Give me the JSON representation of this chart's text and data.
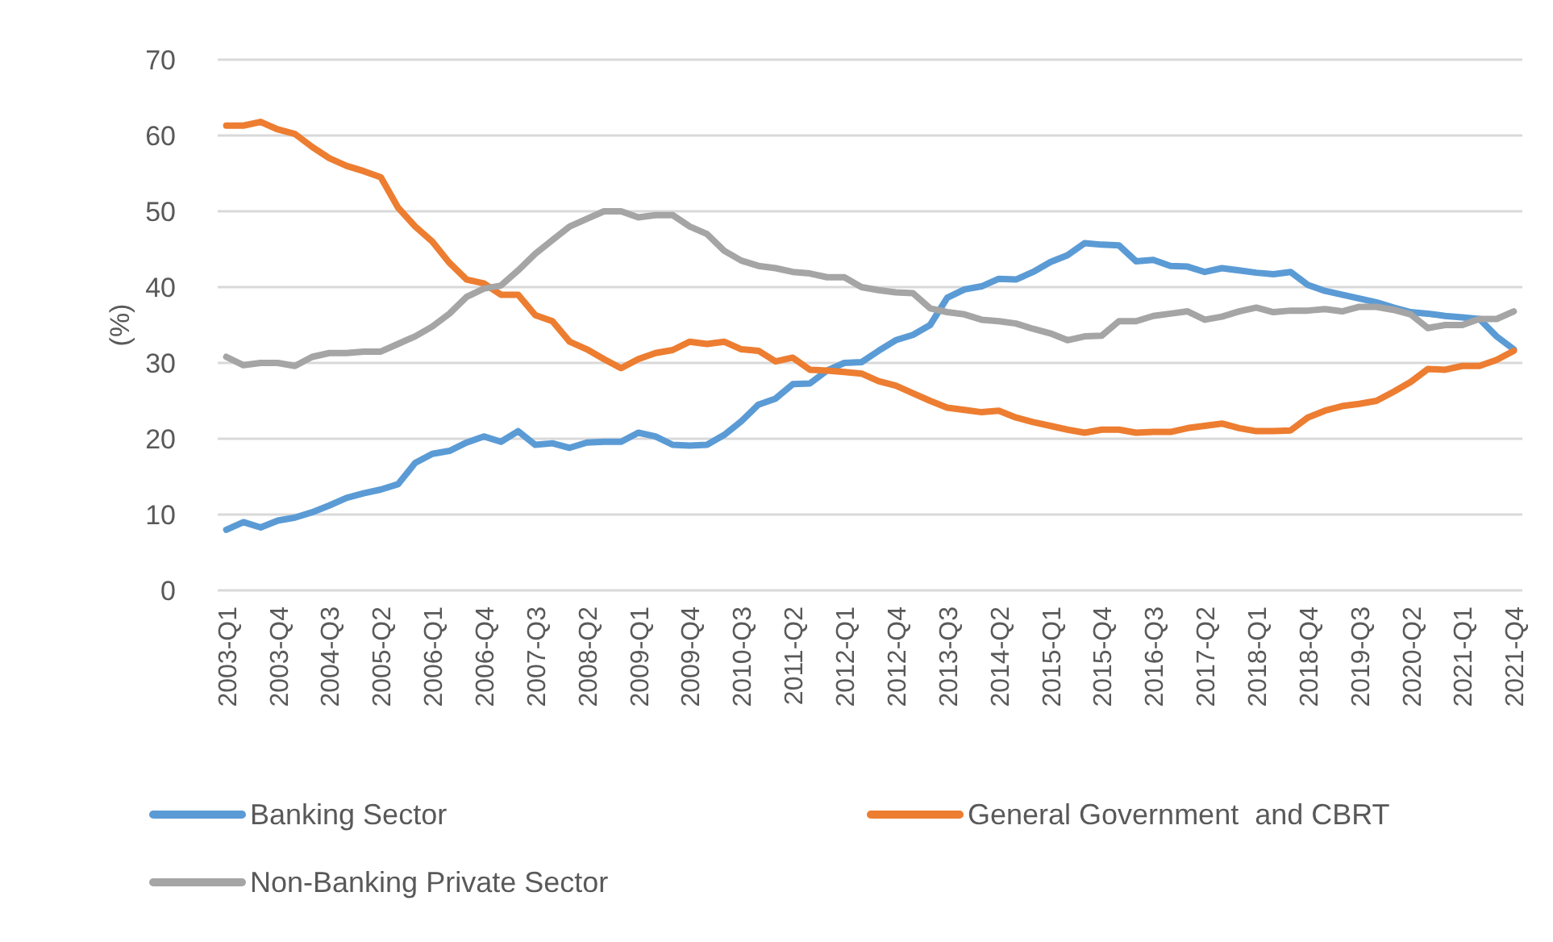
{
  "chart_data": {
    "type": "line",
    "ylabel": "(%)",
    "categories": [
      "2003-Q1",
      null,
      null,
      "2003-Q4",
      null,
      null,
      "2004-Q3",
      null,
      null,
      "2005-Q2",
      null,
      null,
      "2006-Q1",
      null,
      null,
      "2006-Q4",
      null,
      null,
      "2007-Q3",
      null,
      null,
      "2008-Q2",
      null,
      null,
      "2009-Q1",
      null,
      null,
      "2009-Q4",
      null,
      null,
      "2010-Q3",
      null,
      null,
      "2011-Q2",
      null,
      null,
      "2012-Q1",
      null,
      null,
      "2012-Q4",
      null,
      null,
      "2013-Q3",
      null,
      null,
      "2014-Q2",
      null,
      null,
      "2015-Q1",
      null,
      null,
      "2015-Q4",
      null,
      null,
      "2016-Q3",
      null,
      null,
      "2017-Q2",
      null,
      null,
      "2018-Q1",
      null,
      null,
      "2018-Q4",
      null,
      null,
      "2019-Q3",
      null,
      null,
      "2020-Q2",
      null,
      null,
      "2021-Q1",
      null,
      null,
      "2021-Q4"
    ],
    "series": [
      {
        "name": "Banking Sector",
        "color": "#5b9bd5",
        "values": [
          8,
          9,
          8.3,
          9.2,
          9.6,
          10.3,
          11.2,
          12.2,
          12.8,
          13.3,
          14,
          16.8,
          18,
          18.4,
          19.5,
          20.3,
          19.6,
          21,
          19.2,
          19.4,
          18.8,
          19.5,
          19.6,
          19.6,
          20.8,
          20.3,
          19.2,
          19.1,
          19.2,
          20.5,
          22.3,
          24.5,
          25.3,
          27.2,
          27.3,
          29,
          30,
          30.1,
          31.6,
          33,
          33.7,
          35,
          38.6,
          39.7,
          40.1,
          41.1,
          41,
          42,
          43.3,
          44.2,
          45.8,
          45.6,
          45.5,
          43.4,
          43.6,
          42.8,
          42.7,
          42,
          42.5,
          42.2,
          41.9,
          41.7,
          42,
          40.3,
          39.5,
          39,
          38.5,
          38,
          37.3,
          36.7,
          36.5,
          36.2,
          36,
          35.8,
          33.5,
          31.8
        ]
      },
      {
        "name": "General Government  and CBRT",
        "color": "#ed7d31",
        "values": [
          61.3,
          61.3,
          61.8,
          60.8,
          60.2,
          58.5,
          57,
          56,
          55.3,
          54.5,
          50.5,
          48,
          46,
          43.2,
          41,
          40.5,
          39,
          39,
          36.3,
          35.5,
          32.8,
          31.8,
          30.5,
          29.3,
          30.5,
          31.3,
          31.7,
          32.8,
          32.5,
          32.8,
          31.8,
          31.6,
          30.2,
          30.7,
          29.1,
          29,
          28.8,
          28.6,
          27.6,
          27,
          26,
          25,
          24.1,
          23.8,
          23.5,
          23.7,
          22.8,
          22.2,
          21.7,
          21.2,
          20.8,
          21.2,
          21.2,
          20.8,
          20.9,
          20.9,
          21.4,
          21.7,
          22,
          21.4,
          21,
          21,
          21.1,
          22.8,
          23.7,
          24.3,
          24.6,
          25,
          26.2,
          27.5,
          29.2,
          29.1,
          29.6,
          29.6,
          30.4,
          31.6
        ]
      },
      {
        "name": "Non-Banking Private Sector",
        "color": "#a5a5a5",
        "values": [
          30.8,
          29.7,
          30,
          30,
          29.6,
          30.8,
          31.3,
          31.3,
          31.5,
          31.5,
          32.5,
          33.5,
          34.8,
          36.5,
          38.7,
          39.8,
          40.2,
          42.2,
          44.4,
          46.2,
          48,
          49,
          50,
          50,
          49.2,
          49.5,
          49.5,
          48,
          47,
          44.8,
          43.5,
          42.8,
          42.5,
          42,
          41.8,
          41.3,
          41.3,
          40,
          39.6,
          39.3,
          39.2,
          37.2,
          36.7,
          36.4,
          35.7,
          35.5,
          35.2,
          34.5,
          33.9,
          33,
          33.5,
          33.6,
          35.5,
          35.5,
          36.2,
          36.5,
          36.8,
          35.7,
          36.1,
          36.8,
          37.3,
          36.7,
          36.9,
          36.9,
          37.1,
          36.8,
          37.4,
          37.4,
          37,
          36.4,
          34.6,
          35,
          35,
          35.8,
          35.8,
          36.8
        ]
      }
    ],
    "ylim": [
      0,
      70
    ],
    "yticks": [
      0,
      10,
      20,
      30,
      40,
      50,
      60,
      70
    ],
    "grid": "y",
    "legend": "bottom",
    "marker": "none",
    "line_style": "solid"
  }
}
